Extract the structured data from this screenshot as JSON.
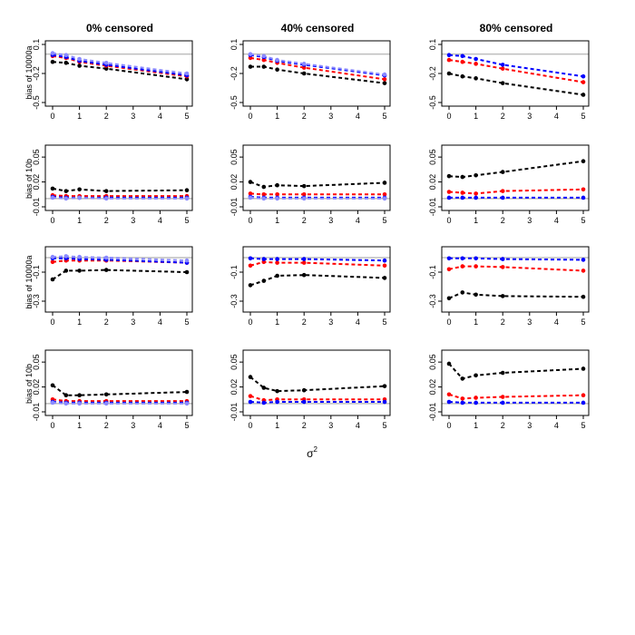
{
  "figure": {
    "xlabel": "σ",
    "xlabel_sup": "2",
    "column_titles": [
      "0% censored",
      "40% censored",
      "80% censored"
    ],
    "row_ylabels": [
      "bias of 10000a",
      "bias of 10b",
      "bias of 10000a",
      "bias of 10b"
    ]
  },
  "colors": {
    "black": "#000000",
    "red": "#ff0000",
    "blue": "#0000ff",
    "lightblue": "#8a8aff",
    "reference": "#bebebe"
  },
  "chart_data": [
    {
      "type": "line",
      "row": 0,
      "col": 0,
      "ylabel": "bias of 10000a",
      "title": "0% censored",
      "xlim": [
        0,
        5
      ],
      "ylim": [
        -0.5,
        0.1
      ],
      "yticks": [
        "-0.5",
        "-0.2",
        "0.1"
      ],
      "ytick_values": [
        -0.5,
        -0.2,
        0.1
      ],
      "xticks": [
        "0",
        "1",
        "2",
        "3",
        "4",
        "5"
      ],
      "reference_y": 0,
      "x": [
        0,
        0.5,
        1,
        2,
        5
      ],
      "series": [
        {
          "color": "black",
          "values": [
            -0.08,
            -0.09,
            -0.12,
            -0.15,
            -0.26
          ]
        },
        {
          "color": "red",
          "values": [
            -0.02,
            -0.04,
            -0.08,
            -0.12,
            -0.23
          ]
        },
        {
          "color": "blue",
          "values": [
            -0.01,
            -0.03,
            -0.07,
            -0.11,
            -0.22
          ]
        },
        {
          "color": "lightblue",
          "values": [
            0.01,
            -0.01,
            -0.05,
            -0.09,
            -0.2
          ]
        }
      ]
    },
    {
      "type": "line",
      "row": 0,
      "col": 1,
      "ylabel": "",
      "title": "40% censored",
      "xlim": [
        0,
        5
      ],
      "ylim": [
        -0.5,
        0.1
      ],
      "yticks": [
        "-0.5",
        "-0.2",
        "0.1"
      ],
      "ytick_values": [
        -0.5,
        -0.2,
        0.1
      ],
      "xticks": [
        "0",
        "1",
        "2",
        "3",
        "4",
        "5"
      ],
      "reference_y": 0,
      "x": [
        0,
        0.5,
        1,
        2,
        5
      ],
      "series": [
        {
          "color": "black",
          "values": [
            -0.13,
            -0.13,
            -0.16,
            -0.2,
            -0.3
          ]
        },
        {
          "color": "red",
          "values": [
            -0.04,
            -0.06,
            -0.09,
            -0.14,
            -0.26
          ]
        },
        {
          "color": "blue",
          "values": [
            -0.01,
            -0.03,
            -0.07,
            -0.11,
            -0.22
          ]
        },
        {
          "color": "lightblue",
          "values": [
            0.0,
            -0.02,
            -0.06,
            -0.1,
            -0.21
          ]
        }
      ]
    },
    {
      "type": "line",
      "row": 0,
      "col": 2,
      "ylabel": "",
      "title": "80% censored",
      "xlim": [
        0,
        5
      ],
      "ylim": [
        -0.5,
        0.1
      ],
      "yticks": [
        "-0.5",
        "-0.2",
        "0.1"
      ],
      "ytick_values": [
        -0.5,
        -0.2,
        0.1
      ],
      "xticks": [
        "0",
        "1",
        "2",
        "3",
        "4",
        "5"
      ],
      "reference_y": 0,
      "x": [
        0,
        0.5,
        1,
        2,
        5
      ],
      "series": [
        {
          "color": "black",
          "values": [
            -0.2,
            -0.23,
            -0.25,
            -0.3,
            -0.42
          ]
        },
        {
          "color": "red",
          "values": [
            -0.06,
            -0.08,
            -0.1,
            -0.15,
            -0.29
          ]
        },
        {
          "color": "blue",
          "values": [
            -0.01,
            -0.02,
            -0.05,
            -0.11,
            -0.23
          ]
        }
      ]
    },
    {
      "type": "line",
      "row": 1,
      "col": 0,
      "ylabel": "bias of 10b",
      "title": "",
      "xlim": [
        0,
        5
      ],
      "ylim": [
        -0.01,
        0.06
      ],
      "yticks": [
        "-0.01",
        "0.02",
        "0.05"
      ],
      "ytick_values": [
        -0.01,
        0.02,
        0.05
      ],
      "xticks": [
        "0",
        "1",
        "2",
        "3",
        "4",
        "5"
      ],
      "reference_y": 0,
      "x": [
        0,
        0.5,
        1,
        2,
        5
      ],
      "series": [
        {
          "color": "black",
          "values": [
            0.012,
            0.009,
            0.011,
            0.009,
            0.01
          ]
        },
        {
          "color": "red",
          "values": [
            0.004,
            0.003,
            0.003,
            0.003,
            0.003
          ]
        },
        {
          "color": "blue",
          "values": [
            0.002,
            0.001,
            0.001,
            0.001,
            0.001
          ]
        },
        {
          "color": "lightblue",
          "values": [
            0.001,
            0.0,
            0.001,
            0.0,
            0.0
          ]
        }
      ]
    },
    {
      "type": "line",
      "row": 1,
      "col": 1,
      "ylabel": "",
      "title": "",
      "xlim": [
        0,
        5
      ],
      "ylim": [
        -0.01,
        0.06
      ],
      "yticks": [
        "-0.01",
        "0.02",
        "0.05"
      ],
      "ytick_values": [
        -0.01,
        0.02,
        0.05
      ],
      "xticks": [
        "0",
        "1",
        "2",
        "3",
        "4",
        "5"
      ],
      "reference_y": 0,
      "x": [
        0,
        0.5,
        1,
        2,
        5
      ],
      "series": [
        {
          "color": "black",
          "values": [
            0.02,
            0.014,
            0.016,
            0.015,
            0.019
          ]
        },
        {
          "color": "red",
          "values": [
            0.006,
            0.005,
            0.005,
            0.005,
            0.005
          ]
        },
        {
          "color": "blue",
          "values": [
            0.002,
            0.001,
            0.001,
            0.001,
            0.001
          ]
        },
        {
          "color": "lightblue",
          "values": [
            0.001,
            0.0,
            0.0,
            0.0,
            0.0
          ]
        }
      ]
    },
    {
      "type": "line",
      "row": 1,
      "col": 2,
      "ylabel": "",
      "title": "",
      "xlim": [
        0,
        5
      ],
      "ylim": [
        -0.01,
        0.06
      ],
      "yticks": [
        "-0.01",
        "0.02",
        "0.05"
      ],
      "ytick_values": [
        -0.01,
        0.02,
        0.05
      ],
      "xticks": [
        "0",
        "1",
        "2",
        "3",
        "4",
        "5"
      ],
      "reference_y": 0,
      "x": [
        0,
        0.5,
        1,
        2,
        5
      ],
      "series": [
        {
          "color": "black",
          "values": [
            0.027,
            0.026,
            0.028,
            0.032,
            0.045
          ]
        },
        {
          "color": "red",
          "values": [
            0.008,
            0.007,
            0.006,
            0.009,
            0.011
          ]
        },
        {
          "color": "blue",
          "values": [
            0.001,
            0.001,
            0.001,
            0.001,
            0.001
          ]
        }
      ]
    },
    {
      "type": "line",
      "row": 2,
      "col": 0,
      "ylabel": "bias of 10000a",
      "title": "",
      "xlim": [
        0,
        5
      ],
      "ylim": [
        -0.35,
        0.05
      ],
      "yticks": [
        "-0.3",
        "-0.1"
      ],
      "ytick_values": [
        -0.3,
        -0.1
      ],
      "xticks": [
        "0",
        "1",
        "2",
        "3",
        "4",
        "5"
      ],
      "reference_y": 0,
      "x": [
        0,
        0.5,
        1,
        2,
        5
      ],
      "series": [
        {
          "color": "black",
          "values": [
            -0.15,
            -0.09,
            -0.09,
            -0.085,
            -0.1
          ]
        },
        {
          "color": "red",
          "values": [
            -0.03,
            -0.02,
            -0.02,
            -0.02,
            -0.035
          ]
        },
        {
          "color": "blue",
          "values": [
            -0.005,
            -0.005,
            -0.01,
            -0.015,
            -0.035
          ]
        },
        {
          "color": "lightblue",
          "values": [
            0.005,
            0.01,
            0.005,
            0.0,
            -0.02
          ]
        }
      ]
    },
    {
      "type": "line",
      "row": 2,
      "col": 1,
      "ylabel": "",
      "title": "",
      "xlim": [
        0,
        5
      ],
      "ylim": [
        -0.35,
        0.05
      ],
      "yticks": [
        "-0.3",
        "-0.1"
      ],
      "ytick_values": [
        -0.3,
        -0.1
      ],
      "xticks": [
        "0",
        "1",
        "2",
        "3",
        "4",
        "5"
      ],
      "reference_y": 0,
      "x": [
        0,
        0.5,
        1,
        2,
        5
      ],
      "series": [
        {
          "color": "black",
          "values": [
            -0.19,
            -0.16,
            -0.125,
            -0.12,
            -0.14
          ]
        },
        {
          "color": "red",
          "values": [
            -0.055,
            -0.03,
            -0.035,
            -0.035,
            -0.055
          ]
        },
        {
          "color": "blue",
          "values": [
            -0.005,
            -0.01,
            -0.01,
            -0.01,
            -0.02
          ]
        }
      ]
    },
    {
      "type": "line",
      "row": 2,
      "col": 2,
      "ylabel": "",
      "title": "",
      "xlim": [
        0,
        5
      ],
      "ylim": [
        -0.35,
        0.05
      ],
      "yticks": [
        "-0.3",
        "-0.1"
      ],
      "ytick_values": [
        -0.3,
        -0.1
      ],
      "xticks": [
        "0",
        "1",
        "2",
        "3",
        "4",
        "5"
      ],
      "reference_y": 0,
      "x": [
        0,
        0.5,
        1,
        2,
        5
      ],
      "series": [
        {
          "color": "black",
          "values": [
            -0.28,
            -0.24,
            -0.255,
            -0.265,
            -0.27
          ]
        },
        {
          "color": "red",
          "values": [
            -0.08,
            -0.06,
            -0.06,
            -0.065,
            -0.09
          ]
        },
        {
          "color": "blue",
          "values": [
            -0.005,
            -0.005,
            -0.005,
            -0.01,
            -0.015
          ]
        }
      ]
    },
    {
      "type": "line",
      "row": 3,
      "col": 0,
      "ylabel": "bias of 10b",
      "title": "",
      "xlim": [
        0,
        5
      ],
      "ylim": [
        -0.01,
        0.06
      ],
      "yticks": [
        "-0.01",
        "0.02",
        "0.05"
      ],
      "ytick_values": [
        -0.01,
        0.02,
        0.05
      ],
      "xticks": [
        "0",
        "1",
        "2",
        "3",
        "4",
        "5"
      ],
      "reference_y": 0,
      "x": [
        0,
        0.5,
        1,
        2,
        5
      ],
      "series": [
        {
          "color": "black",
          "values": [
            0.022,
            0.01,
            0.01,
            0.011,
            0.014
          ]
        },
        {
          "color": "red",
          "values": [
            0.005,
            0.003,
            0.003,
            0.003,
            0.003
          ]
        },
        {
          "color": "blue",
          "values": [
            0.002,
            0.001,
            0.001,
            0.001,
            0.001
          ]
        },
        {
          "color": "lightblue",
          "values": [
            0.001,
            0.0,
            0.0,
            0.0,
            0.0
          ]
        }
      ]
    },
    {
      "type": "line",
      "row": 3,
      "col": 1,
      "ylabel": "",
      "title": "",
      "xlim": [
        0,
        5
      ],
      "ylim": [
        -0.01,
        0.06
      ],
      "yticks": [
        "-0.01",
        "0.02",
        "0.05"
      ],
      "ytick_values": [
        -0.01,
        0.02,
        0.05
      ],
      "xticks": [
        "0",
        "1",
        "2",
        "3",
        "4",
        "5"
      ],
      "reference_y": 0,
      "x": [
        0,
        0.5,
        1,
        2,
        5
      ],
      "series": [
        {
          "color": "black",
          "values": [
            0.032,
            0.019,
            0.015,
            0.016,
            0.021
          ]
        },
        {
          "color": "red",
          "values": [
            0.009,
            0.004,
            0.005,
            0.005,
            0.005
          ]
        },
        {
          "color": "blue",
          "values": [
            0.002,
            0.001,
            0.002,
            0.002,
            0.002
          ]
        }
      ]
    },
    {
      "type": "line",
      "row": 3,
      "col": 2,
      "ylabel": "",
      "title": "",
      "xlim": [
        0,
        5
      ],
      "ylim": [
        -0.01,
        0.06
      ],
      "yticks": [
        "-0.01",
        "0.02",
        "0.05"
      ],
      "ytick_values": [
        -0.01,
        0.02,
        0.05
      ],
      "xticks": [
        "0",
        "1",
        "2",
        "3",
        "4",
        "5"
      ],
      "reference_y": 0,
      "x": [
        0,
        0.5,
        1,
        2,
        5
      ],
      "series": [
        {
          "color": "black",
          "values": [
            0.048,
            0.03,
            0.034,
            0.037,
            0.042
          ]
        },
        {
          "color": "red",
          "values": [
            0.011,
            0.006,
            0.007,
            0.008,
            0.01
          ]
        },
        {
          "color": "blue",
          "values": [
            0.002,
            0.001,
            0.001,
            0.001,
            0.001
          ]
        }
      ]
    }
  ]
}
